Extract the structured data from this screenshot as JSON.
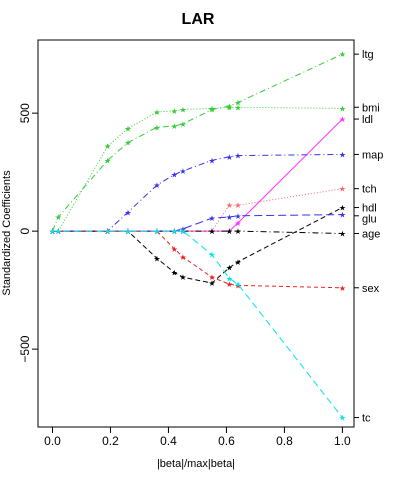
{
  "chart_data": {
    "type": "line",
    "title": "LAR",
    "xlabel": "|beta|/max|beta|",
    "ylabel": "Standardized Coefficients",
    "xlim": [
      -0.05,
      1.04
    ],
    "ylim": [
      -830,
      810
    ],
    "xticks": [
      0.0,
      0.2,
      0.4,
      0.6,
      0.8,
      1.0
    ],
    "xtick_labels": [
      "0.0",
      "0.2",
      "0.4",
      "0.6",
      "0.8",
      "1.0"
    ],
    "yticks": [
      -500,
      0,
      500
    ],
    "ytick_labels": [
      "−500",
      "0",
      "500"
    ],
    "grid": false,
    "x": [
      0.0,
      0.02,
      0.19,
      0.26,
      0.36,
      0.42,
      0.45,
      0.55,
      0.61,
      0.64,
      1.0
    ],
    "series": [
      {
        "name": "ltg",
        "color": "#33cc33",
        "dash": "6,3,1,3",
        "values": [
          0,
          60,
          300,
          375,
          440,
          445,
          455,
          515,
          530,
          545,
          750
        ]
      },
      {
        "name": "bmi",
        "color": "#33cc33",
        "dash": "1,2",
        "values": [
          0,
          0,
          360,
          435,
          505,
          510,
          515,
          520,
          525,
          525,
          520
        ]
      },
      {
        "name": "ldl",
        "color": "#ff33ff",
        "dash": "",
        "values": [
          0,
          0,
          0,
          0,
          0,
          0,
          0,
          0,
          0,
          35,
          475
        ]
      },
      {
        "name": "map",
        "color": "#3333ee",
        "dash": "6,3,1,3",
        "values": [
          0,
          0,
          0,
          80,
          195,
          240,
          255,
          300,
          315,
          320,
          325
        ]
      },
      {
        "name": "tch",
        "color": "#ff6666",
        "dash": "1,2",
        "values": [
          0,
          0,
          0,
          0,
          0,
          0,
          0,
          0,
          110,
          110,
          180
        ]
      },
      {
        "name": "hdl",
        "color": "#000000",
        "dash": "5,3",
        "values": [
          0,
          0,
          0,
          0,
          -115,
          -175,
          -195,
          -220,
          -155,
          -130,
          100
        ]
      },
      {
        "name": "glu",
        "color": "#3333ee",
        "dash": "8,4",
        "values": [
          0,
          0,
          0,
          0,
          0,
          0,
          10,
          55,
          60,
          65,
          70
        ]
      },
      {
        "name": "age",
        "color": "#000000",
        "dash": "6,3,1,3",
        "values": [
          0,
          0,
          0,
          0,
          0,
          0,
          0,
          0,
          0,
          0,
          -10
        ]
      },
      {
        "name": "sex",
        "color": "#ee2222",
        "dash": "4,3",
        "values": [
          0,
          0,
          0,
          0,
          0,
          -75,
          -110,
          -195,
          -225,
          -230,
          -240
        ]
      },
      {
        "name": "tc",
        "color": "#00e5ee",
        "dash": "7,4",
        "values": [
          0,
          0,
          0,
          0,
          0,
          0,
          0,
          -100,
          -200,
          -225,
          -790
        ]
      }
    ],
    "right_labels": [
      {
        "text": "ltg",
        "value": 750
      },
      {
        "text": "bmi",
        "value": 525
      },
      {
        "text": "ldl",
        "value": 475
      },
      {
        "text": "map",
        "value": 325
      },
      {
        "text": "tch",
        "value": 180
      },
      {
        "text": "hdl",
        "value": 100
      },
      {
        "text": "glu",
        "value": 65
      },
      {
        "text": "age",
        "value": -10
      },
      {
        "text": "sex",
        "value": -240
      },
      {
        "text": "tc",
        "value": -790
      }
    ]
  }
}
